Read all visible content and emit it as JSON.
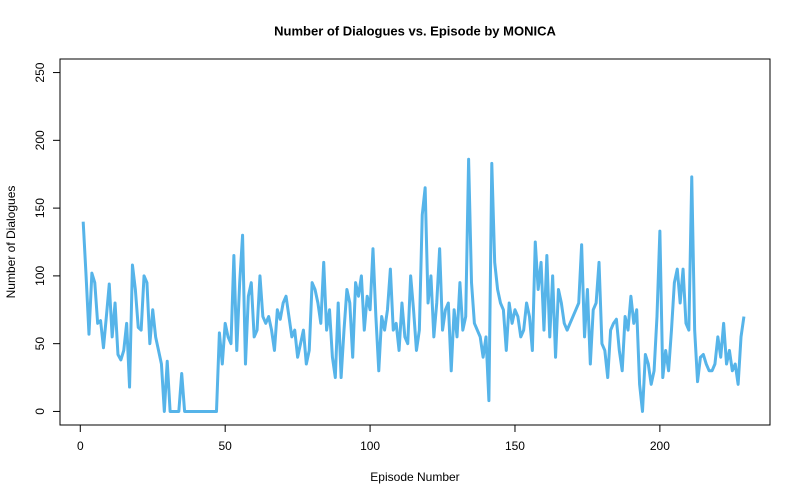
{
  "chart_data": {
    "type": "line",
    "title": "Number of Dialogues vs. Episode by MONICA",
    "x_label": "Episode Number",
    "y_label": "Number of Dialogues",
    "x": [
      1,
      2,
      3,
      4,
      5,
      6,
      7,
      8,
      9,
      10,
      11,
      12,
      13,
      14,
      15,
      16,
      17,
      18,
      19,
      20,
      21,
      22,
      23,
      24,
      25,
      26,
      27,
      28,
      29,
      30,
      31,
      32,
      33,
      34,
      35,
      36,
      37,
      38,
      39,
      40,
      41,
      42,
      43,
      44,
      45,
      46,
      47,
      48,
      49,
      50,
      51,
      52,
      53,
      54,
      55,
      56,
      57,
      58,
      59,
      60,
      61,
      62,
      63,
      64,
      65,
      66,
      67,
      68,
      69,
      70,
      71,
      72,
      73,
      74,
      75,
      76,
      77,
      78,
      79,
      80,
      81,
      82,
      83,
      84,
      85,
      86,
      87,
      88,
      89,
      90,
      91,
      92,
      93,
      94,
      95,
      96,
      97,
      98,
      99,
      100,
      101,
      102,
      103,
      104,
      105,
      106,
      107,
      108,
      109,
      110,
      111,
      112,
      113,
      114,
      115,
      116,
      117,
      118,
      119,
      120,
      121,
      122,
      123,
      124,
      125,
      126,
      127,
      128,
      129,
      130,
      131,
      132,
      133,
      134,
      135,
      136,
      137,
      138,
      139,
      140,
      141,
      142,
      143,
      144,
      145,
      146,
      147,
      148,
      149,
      150,
      151,
      152,
      153,
      154,
      155,
      156,
      157,
      158,
      159,
      160,
      161,
      162,
      163,
      164,
      165,
      166,
      167,
      168,
      169,
      170,
      171,
      172,
      173,
      174,
      175,
      176,
      177,
      178,
      179,
      180,
      181,
      182,
      183,
      184,
      185,
      186,
      187,
      188,
      189,
      190,
      191,
      192,
      193,
      194,
      195,
      196,
      197,
      198,
      199,
      200,
      201,
      202,
      203,
      204,
      205,
      206,
      207,
      208,
      209,
      210,
      211,
      212,
      213,
      214,
      215,
      216,
      217,
      218,
      219,
      220,
      221,
      222,
      223,
      224,
      225,
      226,
      227,
      228,
      229
    ],
    "series": [
      {
        "name": "MONICA",
        "color": "#56B4E9",
        "values": [
          140,
          100,
          57,
          102,
          95,
          65,
          67,
          47,
          70,
          94,
          55,
          80,
          42,
          38,
          45,
          65,
          18,
          108,
          90,
          62,
          60,
          100,
          95,
          50,
          75,
          55,
          45,
          35,
          0,
          37,
          0,
          0,
          0,
          0,
          28,
          0,
          0,
          0,
          0,
          0,
          0,
          0,
          0,
          0,
          0,
          0,
          0,
          58,
          35,
          65,
          55,
          50,
          115,
          45,
          95,
          130,
          35,
          85,
          95,
          55,
          60,
          100,
          70,
          65,
          70,
          60,
          45,
          75,
          68,
          80,
          85,
          70,
          55,
          60,
          40,
          50,
          60,
          35,
          45,
          95,
          90,
          80,
          65,
          110,
          60,
          75,
          40,
          25,
          80,
          25,
          60,
          90,
          80,
          40,
          95,
          85,
          100,
          60,
          85,
          75,
          120,
          70,
          30,
          70,
          60,
          75,
          105,
          60,
          65,
          45,
          80,
          55,
          50,
          100,
          75,
          45,
          60,
          145,
          165,
          80,
          100,
          55,
          80,
          120,
          60,
          75,
          80,
          30,
          75,
          55,
          95,
          60,
          70,
          186,
          95,
          65,
          60,
          55,
          40,
          55,
          8,
          183,
          110,
          90,
          80,
          75,
          45,
          80,
          65,
          75,
          70,
          55,
          60,
          80,
          70,
          45,
          125,
          90,
          110,
          60,
          115,
          55,
          100,
          40,
          90,
          80,
          65,
          60,
          65,
          70,
          75,
          80,
          123,
          55,
          90,
          35,
          75,
          80,
          110,
          50,
          45,
          25,
          60,
          65,
          68,
          45,
          30,
          70,
          60,
          85,
          65,
          75,
          20,
          0,
          42,
          35,
          20,
          30,
          70,
          133,
          25,
          45,
          30,
          60,
          95,
          105,
          80,
          105,
          65,
          60,
          173,
          60,
          22,
          40,
          42,
          35,
          30,
          30,
          35,
          55,
          40,
          65,
          35,
          45,
          30,
          35,
          20,
          55,
          70
        ]
      }
    ],
    "xlim": [
      -7,
      238
    ],
    "ylim": [
      -10,
      260
    ],
    "xticks": [
      0,
      50,
      100,
      150,
      200
    ],
    "yticks": [
      0,
      50,
      100,
      150,
      200,
      250
    ]
  }
}
